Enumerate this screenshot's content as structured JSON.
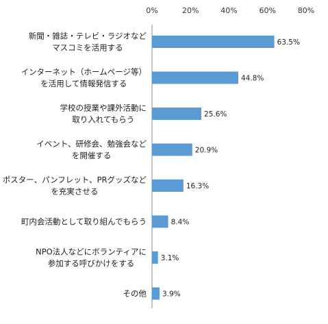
{
  "chart_data": {
    "type": "bar",
    "orientation": "horizontal",
    "title": "",
    "xlabel": "",
    "ylabel": "",
    "xlim": [
      0,
      80
    ],
    "ticks": [
      "0%",
      "20%",
      "40%",
      "60%",
      "80%"
    ],
    "tick_values": [
      0,
      20,
      40,
      60,
      80
    ],
    "grid": false,
    "legend": "none",
    "bar_color": "#5B9BD5",
    "categories": [
      [
        "新聞・雑誌・テレビ・ラジオなど",
        "マスコミを活用する"
      ],
      [
        "インターネット（ホームページ等）",
        "を活用して情報発信する"
      ],
      [
        "学校の授業や課外活動に",
        "取り入れてもらう"
      ],
      [
        "イベント、研修会、勉強会など",
        "を開催する"
      ],
      [
        "ポスター、パンフレット、PRグッズなど",
        "を充実させる"
      ],
      [
        "町内会活動として取り組んでもらう"
      ],
      [
        "NPO法人などにボランティアに",
        "参加する呼びかけをする"
      ],
      [
        "その他"
      ]
    ],
    "values": [
      63.5,
      44.8,
      25.6,
      20.9,
      16.3,
      8.4,
      3.1,
      3.9
    ],
    "value_labels": [
      "63.5%",
      "44.8%",
      "25.6%",
      "20.9%",
      "16.3%",
      "8.4%",
      "3.1%",
      "3.9%"
    ]
  }
}
